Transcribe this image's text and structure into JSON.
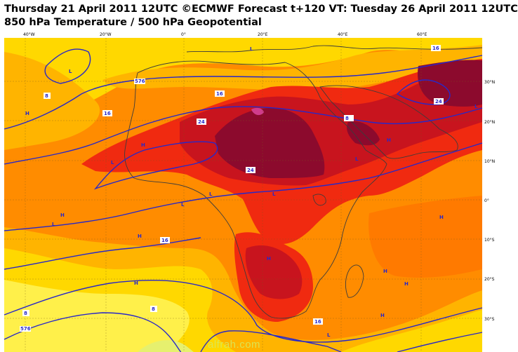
{
  "header": {
    "line1": "Thursday 21 April 2011 12UTC ©ECMWF Forecast t+120 VT: Tuesday 26 April 2011 12UTC",
    "line2": "850 hPa Temperature / 500 hPa Geopotential"
  },
  "axes": {
    "lon_labels": [
      "40°W",
      "20°W",
      "0°",
      "20°E",
      "40°E",
      "60°E"
    ],
    "lat_labels": [
      "30°N",
      "20°N",
      "10°N",
      "0°",
      "10°S",
      "20°S",
      "30°S"
    ]
  },
  "map": {
    "pressure_labels": {
      "highs": "H",
      "lows": "L"
    },
    "contour_values": [
      "8",
      "16",
      "24",
      "576",
      "8",
      "16",
      "24",
      "16",
      "8",
      "16",
      "576",
      "8",
      "16",
      "24"
    ],
    "colors": {
      "yellow": "#ffd800",
      "light_orange": "#ffb400",
      "orange": "#ff8c00",
      "dark_orange": "#ff5a00",
      "red": "#f02a10",
      "dark_red": "#c8141e",
      "maroon": "#8c0a2d",
      "pink": "#d03c8c",
      "contour": "#2828c8",
      "coast": "#3c3c3c"
    }
  },
  "watermark": "alfrah.com"
}
